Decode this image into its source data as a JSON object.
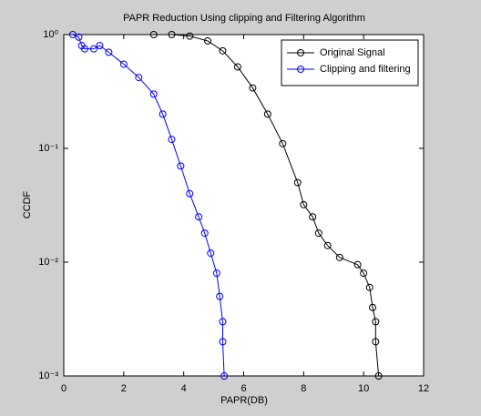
{
  "chart_data": {
    "type": "line",
    "title": "PAPR Reduction Using clipping and Filtering Algorithm",
    "xlabel": "PAPR(DB)",
    "ylabel": "CCDF",
    "xlim": [
      0,
      12
    ],
    "xticks": [
      0,
      2,
      4,
      6,
      8,
      10,
      12
    ],
    "ylim": [
      0.001,
      1
    ],
    "yscale": "log",
    "yticks": [
      {
        "value": 0.001,
        "label": "10⁻³"
      },
      {
        "value": 0.01,
        "label": "10⁻²"
      },
      {
        "value": 0.1,
        "label": "10⁻¹"
      },
      {
        "value": 1,
        "label": "10⁰"
      }
    ],
    "legend": "upper right",
    "series": [
      {
        "name": "Original Signal",
        "color": "#000000",
        "x": [
          3.0,
          3.6,
          4.2,
          4.8,
          5.3,
          5.8,
          6.3,
          6.8,
          7.3,
          7.8,
          8.0,
          8.3,
          8.5,
          8.8,
          9.2,
          9.8,
          10.0,
          10.2,
          10.3,
          10.4,
          10.4,
          10.5
        ],
        "values": [
          1,
          1,
          0.97,
          0.88,
          0.72,
          0.52,
          0.34,
          0.2,
          0.11,
          0.05,
          0.032,
          0.025,
          0.018,
          0.014,
          0.011,
          0.0095,
          0.008,
          0.006,
          0.004,
          0.003,
          0.002,
          0.001
        ]
      },
      {
        "name": "Clipping and filtering",
        "color": "#0000ff",
        "x": [
          0.3,
          0.5,
          0.6,
          0.7,
          1.0,
          1.2,
          1.5,
          2.0,
          2.5,
          3.0,
          3.3,
          3.6,
          3.9,
          4.2,
          4.5,
          4.7,
          4.9,
          5.1,
          5.2,
          5.3,
          5.3,
          5.35
        ],
        "values": [
          1,
          0.95,
          0.8,
          0.75,
          0.75,
          0.8,
          0.7,
          0.55,
          0.42,
          0.3,
          0.2,
          0.12,
          0.07,
          0.04,
          0.025,
          0.018,
          0.012,
          0.008,
          0.005,
          0.003,
          0.002,
          0.001
        ]
      }
    ]
  }
}
